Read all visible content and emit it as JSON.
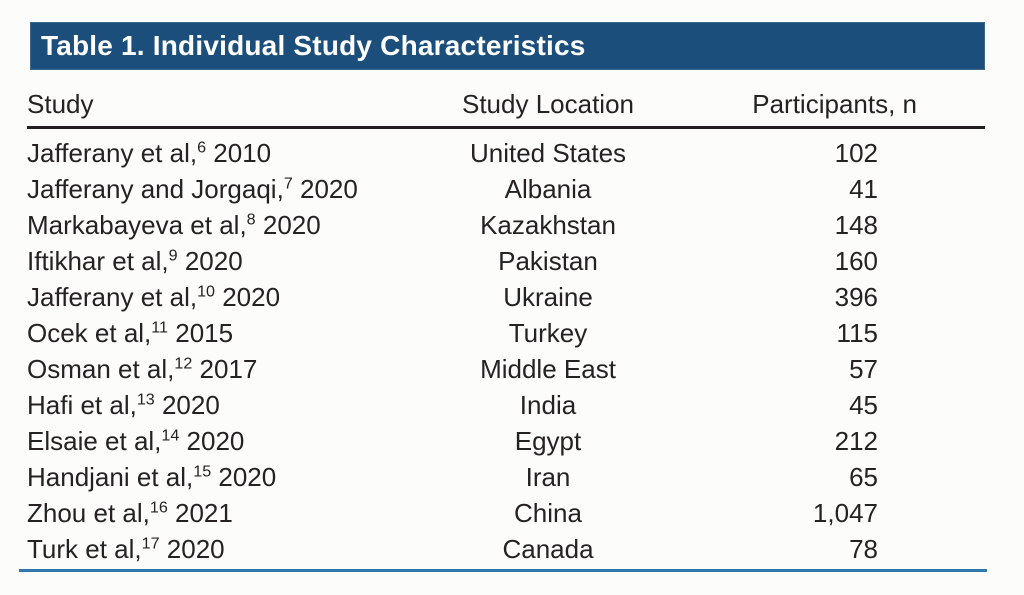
{
  "title_bar": {
    "label": "Table 1. Individual Study Characteristics",
    "background": "#1b4e7b",
    "text_color": "#ffffff"
  },
  "columns": {
    "study": "Study",
    "location": "Study Location",
    "participants": "Participants, n"
  },
  "rules": {
    "header_rule_color": "#231f20",
    "bottom_rule_color": "#2e78aa"
  },
  "rows": [
    {
      "study": "Jafferany et al,",
      "ref": "6",
      "year": " 2010",
      "location": "United States",
      "participants": "102"
    },
    {
      "study": "Jafferany and Jorgaqi,",
      "ref": "7",
      "year": " 2020",
      "location": "Albania",
      "participants": "41"
    },
    {
      "study": "Markabayeva et al,",
      "ref": "8",
      "year": " 2020",
      "location": "Kazakhstan",
      "participants": "148"
    },
    {
      "study": "Iftikhar et al,",
      "ref": "9",
      "year": " 2020",
      "location": "Pakistan",
      "participants": "160"
    },
    {
      "study": "Jafferany et al,",
      "ref": "10",
      "year": " 2020",
      "location": "Ukraine",
      "participants": "396"
    },
    {
      "study": "Ocek et al,",
      "ref": "11",
      "year": " 2015",
      "location": "Turkey",
      "participants": "115"
    },
    {
      "study": "Osman et al,",
      "ref": "12",
      "year": " 2017",
      "location": "Middle East",
      "participants": "57"
    },
    {
      "study": "Hafi et al,",
      "ref": "13",
      "year": " 2020",
      "location": "India",
      "participants": "45"
    },
    {
      "study": "Elsaie et al,",
      "ref": "14",
      "year": " 2020",
      "location": "Egypt",
      "participants": "212"
    },
    {
      "study": "Handjani et al,",
      "ref": "15",
      "year": " 2020",
      "location": "Iran",
      "participants": "65"
    },
    {
      "study": "Zhou et al,",
      "ref": "16",
      "year": " 2021",
      "location": "China",
      "participants": "1,047"
    },
    {
      "study": "Turk et al,",
      "ref": "17",
      "year": " 2020",
      "location": "Canada",
      "participants": "78"
    }
  ],
  "chart_data": {
    "type": "table",
    "title": "Table 1. Individual Study Characteristics",
    "columns": [
      "Study",
      "Study Location",
      "Participants, n"
    ],
    "rows": [
      [
        "Jafferany et al,6 2010",
        "United States",
        "102"
      ],
      [
        "Jafferany and Jorgaqi,7 2020",
        "Albania",
        "41"
      ],
      [
        "Markabayeva et al,8 2020",
        "Kazakhstan",
        "148"
      ],
      [
        "Iftikhar et al,9 2020",
        "Pakistan",
        "160"
      ],
      [
        "Jafferany et al,10 2020",
        "Ukraine",
        "396"
      ],
      [
        "Ocek et al,11 2015",
        "Turkey",
        "115"
      ],
      [
        "Osman et al,12 2017",
        "Middle East",
        "57"
      ],
      [
        "Hafi et al,13 2020",
        "India",
        "45"
      ],
      [
        "Elsaie et al,14 2020",
        "Egypt",
        "212"
      ],
      [
        "Handjani et al,15 2020",
        "Iran",
        "65"
      ],
      [
        "Zhou et al,16 2021",
        "China",
        "1,047"
      ],
      [
        "Turk et al,17 2020",
        "Canada",
        "78"
      ]
    ]
  }
}
